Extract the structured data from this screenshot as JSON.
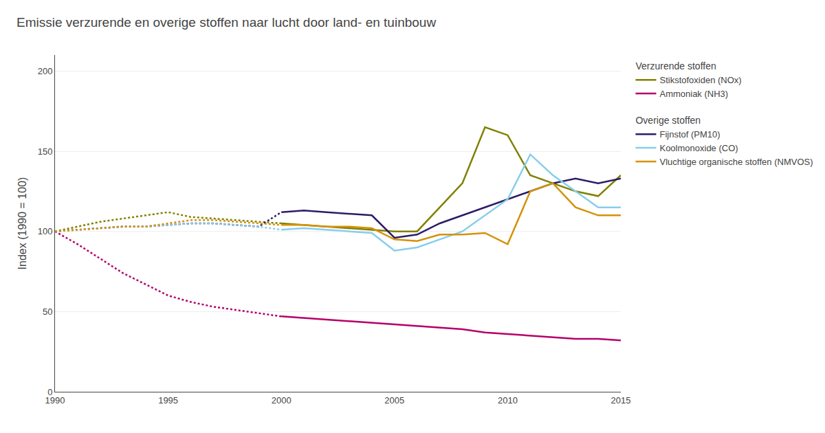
{
  "chart_data": {
    "type": "line",
    "title": "Emissie verzurende en overige stoffen naar lucht door land- en tuinbouw",
    "y_label": "Index (1990 = 100)",
    "x": [
      1990,
      1991,
      1992,
      1993,
      1994,
      1995,
      1996,
      1997,
      1998,
      1999,
      2000,
      2001,
      2002,
      2003,
      2004,
      2005,
      2006,
      2007,
      2008,
      2009,
      2010,
      2011,
      2012,
      2013,
      2014,
      2015
    ],
    "xlim": [
      1990,
      2015
    ],
    "xticks": [
      1990,
      1995,
      2000,
      2005,
      2010,
      2015
    ],
    "ylim": [
      0,
      210
    ],
    "yticks": [
      0,
      50,
      100,
      150,
      200
    ],
    "grid": "y",
    "series": [
      {
        "name": "Stikstofoxiden (NOx)",
        "group": "Verzurende stoffen",
        "color": "#808000",
        "line_style": "dotted",
        "values": [
          100,
          103,
          106,
          108,
          110,
          112,
          109,
          108,
          107,
          106,
          105,
          null,
          null,
          null,
          null,
          null,
          null,
          null,
          null,
          null,
          null,
          null,
          null,
          null,
          null,
          null
        ]
      },
      {
        "name": "Stikstofoxiden (NOx)",
        "group": "Verzurende stoffen",
        "color": "#808000",
        "line_style": "solid",
        "values": [
          null,
          null,
          null,
          null,
          null,
          null,
          null,
          null,
          null,
          null,
          105,
          104,
          103,
          102,
          101,
          100,
          100,
          115,
          130,
          165,
          160,
          135,
          130,
          125,
          122,
          135
        ]
      },
      {
        "name": "Ammoniak (NH3)",
        "group": "Verzurende stoffen",
        "color": "#B5006A",
        "line_style": "dotted",
        "values": [
          100,
          92,
          83,
          74,
          67,
          60,
          56,
          53,
          51,
          49,
          47,
          null,
          null,
          null,
          null,
          null,
          null,
          null,
          null,
          null,
          null,
          null,
          null,
          null,
          null,
          null
        ]
      },
      {
        "name": "Ammoniak (NH3)",
        "group": "Verzurende stoffen",
        "color": "#B5006A",
        "line_style": "solid",
        "values": [
          null,
          null,
          null,
          null,
          null,
          null,
          null,
          null,
          null,
          null,
          47,
          46,
          45,
          44,
          43,
          42,
          41,
          40,
          39,
          37,
          36,
          35,
          34,
          33,
          33,
          32
        ]
      },
      {
        "name": "Fijnstof (PM10)",
        "group": "Overige stoffen",
        "color": "#2D1B69",
        "line_style": "dotted",
        "values": [
          100,
          101,
          102,
          103,
          103,
          104,
          105,
          105,
          104,
          103,
          112,
          null,
          null,
          null,
          null,
          null,
          null,
          null,
          null,
          null,
          null,
          null,
          null,
          null,
          null,
          null
        ]
      },
      {
        "name": "Fijnstof (PM10)",
        "group": "Overige stoffen",
        "color": "#2D1B69",
        "line_style": "solid",
        "values": [
          null,
          null,
          null,
          null,
          null,
          null,
          null,
          null,
          null,
          null,
          112,
          113,
          112,
          111,
          110,
          96,
          98,
          105,
          110,
          115,
          120,
          125,
          130,
          133,
          130,
          133
        ]
      },
      {
        "name": "Koolmonoxide (CO)",
        "group": "Overige stoffen",
        "color": "#87CEEB",
        "line_style": "dotted",
        "values": [
          100,
          101,
          102,
          103,
          103,
          104,
          105,
          105,
          104,
          103,
          101,
          null,
          null,
          null,
          null,
          null,
          null,
          null,
          null,
          null,
          null,
          null,
          null,
          null,
          null,
          null
        ]
      },
      {
        "name": "Koolmonoxide (CO)",
        "group": "Overige stoffen",
        "color": "#87CEEB",
        "line_style": "solid",
        "values": [
          null,
          null,
          null,
          null,
          null,
          null,
          null,
          null,
          null,
          null,
          101,
          102,
          101,
          100,
          99,
          88,
          90,
          95,
          100,
          110,
          120,
          148,
          135,
          125,
          115,
          115
        ]
      },
      {
        "name": "Vluchtige organische stoffen (NMVOS)",
        "group": "Overige stoffen",
        "color": "#D4920A",
        "line_style": "dotted",
        "values": [
          100,
          101,
          102,
          103,
          103,
          105,
          107,
          107,
          106,
          105,
          104,
          null,
          null,
          null,
          null,
          null,
          null,
          null,
          null,
          null,
          null,
          null,
          null,
          null,
          null,
          null
        ]
      },
      {
        "name": "Vluchtige organische stoffen (NMVOS)",
        "group": "Overige stoffen",
        "color": "#D4920A",
        "line_style": "solid",
        "values": [
          null,
          null,
          null,
          null,
          null,
          null,
          null,
          null,
          null,
          null,
          104,
          104,
          103,
          103,
          102,
          95,
          94,
          98,
          98,
          99,
          92,
          125,
          130,
          115,
          110,
          110
        ]
      }
    ]
  }
}
